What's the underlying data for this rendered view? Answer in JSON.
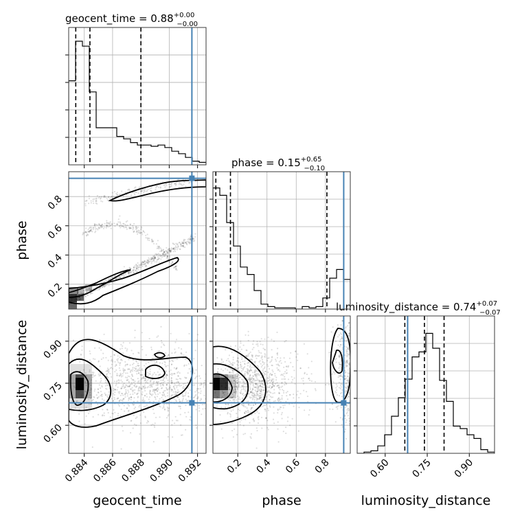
{
  "chart_data": {
    "type": "corner",
    "parameters": [
      "geocent_time",
      "phase",
      "luminosity_distance"
    ],
    "titles": {
      "geocent_time": {
        "prefix": "geocent_time = ",
        "median": "0.88",
        "plus": "+0.00",
        "minus": "−0.00"
      },
      "phase": {
        "prefix": "phase = ",
        "median": "0.15",
        "plus": "+0.65",
        "minus": "−0.10"
      },
      "luminosity_distance": {
        "prefix": "luminosity_distance = ",
        "median": "0.74",
        "plus": "+0.07",
        "minus": "−0.07"
      }
    },
    "ranges": {
      "geocent_time": [
        0.8829,
        0.8926
      ],
      "phase": [
        0.03,
        0.97
      ],
      "luminosity_distance": [
        0.5,
        0.99
      ]
    },
    "ticks": {
      "geocent_time": [
        "0.884",
        "0.886",
        "0.888",
        "0.890",
        "0.892"
      ],
      "phase_x": [
        "0.2",
        "0.4",
        "0.6",
        "0.8"
      ],
      "phase_y": [
        "0.2",
        "0.4",
        "0.6",
        "0.8"
      ],
      "luminosity_distance_x": [
        "0.60",
        "0.75",
        "0.90"
      ],
      "luminosity_distance_y": [
        "0.60",
        "0.75",
        "0.90"
      ]
    },
    "truths": {
      "geocent_time": 0.8916,
      "phase": 0.925,
      "luminosity_distance": 0.68
    },
    "quantiles": {
      "geocent_time": [
        0.8834,
        0.8844,
        0.888
      ],
      "phase": [
        0.05,
        0.15,
        0.81
      ],
      "luminosity_distance": [
        0.67,
        0.74,
        0.81
      ]
    },
    "histograms": {
      "geocent_time": {
        "edges_from": 0.8829,
        "bin_width": 0.000485,
        "counts": [
          0.68,
          1.0,
          0.96,
          0.59,
          0.3,
          0.3,
          0.3,
          0.23,
          0.21,
          0.18,
          0.16,
          0.16,
          0.15,
          0.16,
          0.14,
          0.11,
          0.09,
          0.06,
          0.03,
          0.02
        ]
      },
      "phase": {
        "edges_from": 0.03,
        "bin_width": 0.047,
        "counts": [
          0.98,
          0.92,
          0.7,
          0.51,
          0.34,
          0.28,
          0.15,
          0.04,
          0.02,
          0.01,
          0.01,
          0.01,
          0.0,
          0.02,
          0.01,
          0.02,
          0.09,
          0.25,
          0.32,
          0.24
        ]
      },
      "luminosity_distance": {
        "edges_from": 0.5,
        "bin_width": 0.0245,
        "counts": [
          0.0,
          0.01,
          0.02,
          0.06,
          0.15,
          0.3,
          0.45,
          0.6,
          0.78,
          0.82,
          0.97,
          0.85,
          0.59,
          0.42,
          0.22,
          0.2,
          0.15,
          0.12,
          0.03,
          0.01
        ]
      }
    },
    "axis_labels": {
      "x": [
        "geocent_time",
        "phase",
        "luminosity_distance"
      ],
      "y": [
        "phase",
        "luminosity_distance"
      ]
    },
    "grid": true,
    "colors": {
      "truth": "#4682b4",
      "hist": "#000000",
      "grid": "#b3b3b3"
    }
  }
}
